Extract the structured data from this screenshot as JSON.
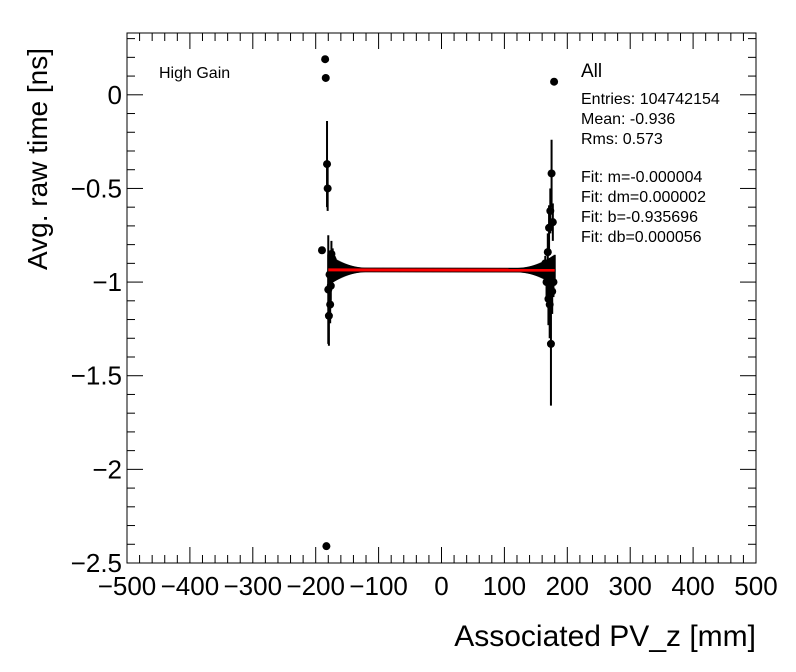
{
  "chart_data": {
    "type": "scatter",
    "title": "",
    "xlabel": "Associated PV_z [mm]",
    "ylabel": "Avg. raw time [ns]",
    "xlim": [
      -500,
      500
    ],
    "ylim": [
      -2.5,
      0.33
    ],
    "x_ticks": [
      "−500",
      "−400",
      "−300",
      "−200",
      "−100",
      "0",
      "100",
      "200",
      "300",
      "400",
      "500"
    ],
    "y_ticks": [
      "0",
      "−0.5",
      "−1",
      "−1.5",
      "−2",
      "−2.5"
    ],
    "x_tick_values": [
      -500,
      -400,
      -300,
      -200,
      -100,
      0,
      100,
      200,
      300,
      400,
      500
    ],
    "y_tick_values": [
      0,
      -0.5,
      -1,
      -1.5,
      -2,
      -2.5
    ],
    "series": [
      {
        "name": "All",
        "points": [
          {
            "x": -190,
            "y": -0.83,
            "err": 0.02
          },
          {
            "x": -185,
            "y": 0.19,
            "err": 0.0
          },
          {
            "x": -184,
            "y": 0.09,
            "err": 0.0
          },
          {
            "x": -183,
            "y": -2.41,
            "err": 0.0
          },
          {
            "x": -182,
            "y": -0.37,
            "err": 0.23
          },
          {
            "x": -181,
            "y": -0.5,
            "err": 0.12
          },
          {
            "x": -180,
            "y": -1.04,
            "err": 0.29
          },
          {
            "x": -179,
            "y": -1.18,
            "err": 0.16
          },
          {
            "x": -178,
            "y": -0.96,
            "err": 0.12
          },
          {
            "x": -177,
            "y": -1.12,
            "err": 0.1
          },
          {
            "x": -176,
            "y": -1.02,
            "err": 0.08
          },
          {
            "x": -175,
            "y": -0.85,
            "err": 0.07
          },
          {
            "x": -173,
            "y": -0.88,
            "err": 0.06
          },
          {
            "x": -170,
            "y": -0.9,
            "err": 0.04
          },
          {
            "x": 165,
            "y": -0.9,
            "err": 0.04
          },
          {
            "x": 167,
            "y": -1.0,
            "err": 0.08
          },
          {
            "x": 169,
            "y": -0.84,
            "err": 0.1
          },
          {
            "x": 170,
            "y": -1.09,
            "err": 0.14
          },
          {
            "x": 171,
            "y": -0.71,
            "err": 0.12
          },
          {
            "x": 172,
            "y": -1.12,
            "err": 0.18
          },
          {
            "x": 173,
            "y": -0.62,
            "err": 0.12
          },
          {
            "x": 174,
            "y": -1.33,
            "err": 0.33
          },
          {
            "x": 175,
            "y": -0.42,
            "err": 0.18
          },
          {
            "x": 176,
            "y": -1.05,
            "err": 0.12
          },
          {
            "x": 177,
            "y": -0.68,
            "err": 0.1
          },
          {
            "x": 178,
            "y": -1.0,
            "err": 0.08
          },
          {
            "x": 179,
            "y": 0.07,
            "err": 0.0
          }
        ]
      }
    ],
    "fit": {
      "x_range": [
        -180,
        180
      ],
      "slope": -4e-06,
      "intercept": -0.935696,
      "color": "#ff0000"
    },
    "annotation": "High Gain",
    "stats": {
      "name": "All",
      "lines": [
        "Entries: 104742154",
        "Mean: -0.936",
        "Rms: 0.573"
      ],
      "fit_lines": [
        "Fit: m=-0.000004",
        "Fit: dm=0.000002",
        "Fit: b=-0.935696",
        "Fit: db=0.000056"
      ]
    },
    "grid": false,
    "legend_position": "top-right"
  }
}
